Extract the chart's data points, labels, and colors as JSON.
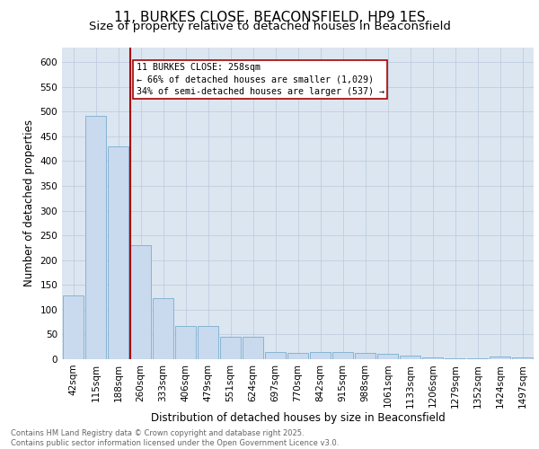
{
  "title1": "11, BURKES CLOSE, BEACONSFIELD, HP9 1ES",
  "title2": "Size of property relative to detached houses in Beaconsfield",
  "xlabel": "Distribution of detached houses by size in Beaconsfield",
  "ylabel": "Number of detached properties",
  "bar_labels": [
    "42sqm",
    "115sqm",
    "188sqm",
    "260sqm",
    "333sqm",
    "406sqm",
    "479sqm",
    "551sqm",
    "624sqm",
    "697sqm",
    "770sqm",
    "842sqm",
    "915sqm",
    "988sqm",
    "1061sqm",
    "1133sqm",
    "1206sqm",
    "1279sqm",
    "1352sqm",
    "1424sqm",
    "1497sqm"
  ],
  "bar_values": [
    128,
    492,
    430,
    230,
    124,
    67,
    67,
    46,
    46,
    15,
    13,
    15,
    15,
    12,
    10,
    7,
    4,
    1,
    1,
    5,
    4
  ],
  "bar_color": "#c9d9ee",
  "bar_edge_color": "#7aadd0",
  "vline_x_index": 3,
  "vline_color": "#aa0000",
  "annotation_text": "11 BURKES CLOSE: 258sqm\n← 66% of detached houses are smaller (1,029)\n34% of semi-detached houses are larger (537) →",
  "annotation_box_color": "#ffffff",
  "annotation_box_edge_color": "#aa0000",
  "ylim": [
    0,
    630
  ],
  "yticks": [
    0,
    50,
    100,
    150,
    200,
    250,
    300,
    350,
    400,
    450,
    500,
    550,
    600
  ],
  "background_color": "#dce6f0",
  "plot_bg_color": "#dce6f0",
  "footer_text": "Contains HM Land Registry data © Crown copyright and database right 2025.\nContains public sector information licensed under the Open Government Licence v3.0.",
  "title_fontsize": 11,
  "subtitle_fontsize": 9.5,
  "axis_label_fontsize": 8.5,
  "tick_fontsize": 7.5,
  "footer_fontsize": 6
}
